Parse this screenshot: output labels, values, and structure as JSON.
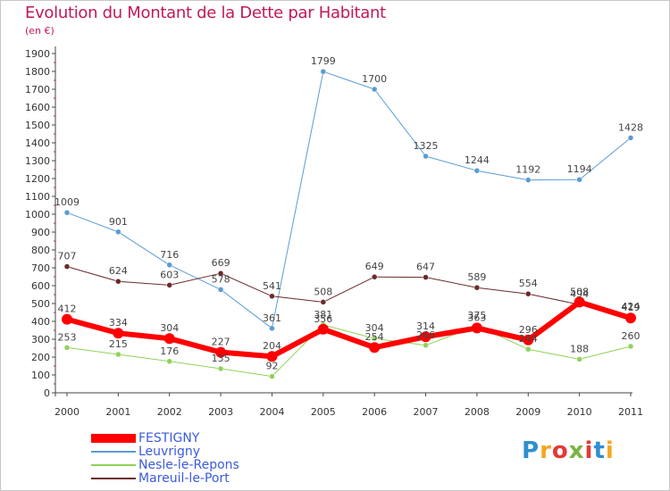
{
  "title": "Evolution du Montant de la Dette par Habitant",
  "subtitle": "(en €)",
  "logo": {
    "letters": [
      "P",
      "r",
      "o",
      "x",
      "i",
      "t",
      "i"
    ],
    "colors": [
      "#2e8fd0",
      "#f5a623",
      "#e53935",
      "#7cb342",
      "#e53935",
      "#2e8fd0",
      "#f5a623"
    ]
  },
  "chart_data": {
    "type": "line",
    "x": [
      "2000",
      "2001",
      "2002",
      "2003",
      "2004",
      "2005",
      "2006",
      "2007",
      "2008",
      "2009",
      "2010",
      "2011"
    ],
    "ylim": [
      0,
      1900
    ],
    "yticks": [
      0,
      100,
      200,
      300,
      400,
      500,
      600,
      700,
      800,
      900,
      1000,
      1100,
      1200,
      1300,
      1400,
      1500,
      1600,
      1700,
      1800,
      1900
    ],
    "grid": false,
    "legend_position": "bottom-left",
    "series": [
      {
        "name": "Leuvrigny",
        "color": "#5a9bd4",
        "width": 1,
        "marker_r": 3,
        "label_color": "#444444",
        "values": [
          1009,
          901,
          716,
          578,
          361,
          1799,
          1700,
          1325,
          1244,
          1192,
          1194,
          1428
        ]
      },
      {
        "name": "Mareuil-le-Port",
        "color": "#6b2a2a",
        "width": 1,
        "marker_r": 3,
        "label_color": "#444444",
        "values": [
          707,
          624,
          603,
          669,
          541,
          508,
          649,
          647,
          589,
          554,
          494,
          424
        ]
      },
      {
        "name": "Nesle-le-Repons",
        "color": "#8fd35a",
        "width": 1,
        "marker_r": 3,
        "label_color": "#444444",
        "values": [
          253,
          215,
          176,
          135,
          92,
          381,
          304,
          266,
          375,
          244,
          188,
          260
        ]
      },
      {
        "name": "FESTIGNY",
        "color": "#ff0000",
        "width": 6,
        "marker_r": 6,
        "label_color": "#444444",
        "values": [
          412,
          334,
          304,
          227,
          204,
          356,
          254,
          314,
          363,
          296,
          508,
          419
        ]
      }
    ]
  },
  "legend": [
    {
      "label": "FESTIGNY",
      "color": "#ff0000",
      "thickness": 10,
      "text_color": "#3b5bdb"
    },
    {
      "label": "Leuvrigny",
      "color": "#5a9bd4",
      "thickness": 2,
      "text_color": "#3b5bdb"
    },
    {
      "label": "Nesle-le-Repons",
      "color": "#8fd35a",
      "thickness": 2,
      "text_color": "#3b5bdb"
    },
    {
      "label": "Mareuil-le-Port",
      "color": "#6b2a2a",
      "thickness": 2,
      "text_color": "#3b5bdb"
    }
  ]
}
